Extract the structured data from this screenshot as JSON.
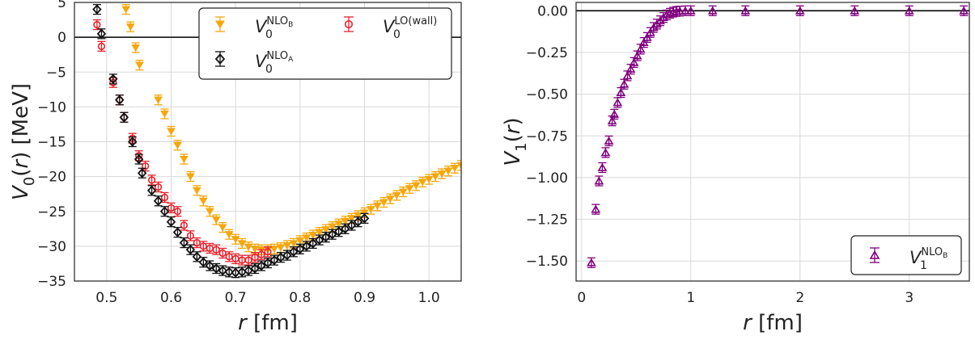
{
  "chart_data": [
    {
      "type": "scatter",
      "xlabel": "r [fm]",
      "ylabel": "V_0(r) [MeV]",
      "xlim": [
        0.45,
        1.05
      ],
      "ylim": [
        -35,
        5
      ],
      "xticks": [
        0.5,
        0.6,
        0.7,
        0.8,
        0.9,
        1.0
      ],
      "xtick_labels": [
        "0.5",
        "0.6",
        "0.7",
        "0.8",
        "0.9",
        "1.0"
      ],
      "yticks": [
        -35,
        -30,
        -25,
        -20,
        -15,
        -10,
        -5,
        0,
        5
      ],
      "ytick_labels": [
        "−35",
        "−30",
        "−25",
        "−20",
        "−15",
        "−10",
        "−5",
        "0",
        "5"
      ],
      "grid": true,
      "zero_line": true,
      "legend_position": "top-right",
      "series": [
        {
          "name": "V_0^{NLO_B}",
          "legend_label": {
            "base": "V",
            "sub": "0",
            "sup": "NLO",
            "supsub": "B"
          },
          "color": "#f5a70d",
          "marker": "triangle-down",
          "points": [
            [
              0.53,
              4.0
            ],
            [
              0.537,
              1.5
            ],
            [
              0.545,
              -1.5
            ],
            [
              0.551,
              -4.0
            ],
            [
              0.58,
              -9.0
            ],
            [
              0.59,
              -11.0
            ],
            [
              0.6,
              -13.5
            ],
            [
              0.61,
              -15.5
            ],
            [
              0.62,
              -17.5
            ],
            [
              0.63,
              -20.0
            ],
            [
              0.64,
              -22.0
            ],
            [
              0.65,
              -23.5
            ],
            [
              0.66,
              -25.0
            ],
            [
              0.67,
              -26.2
            ],
            [
              0.68,
              -27.3
            ],
            [
              0.69,
              -28.3
            ],
            [
              0.7,
              -29.0
            ],
            [
              0.71,
              -29.6
            ],
            [
              0.72,
              -30.1
            ],
            [
              0.73,
              -30.4
            ],
            [
              0.74,
              -30.5
            ],
            [
              0.75,
              -30.5
            ],
            [
              0.76,
              -30.4
            ],
            [
              0.77,
              -30.2
            ],
            [
              0.78,
              -29.9
            ],
            [
              0.79,
              -29.6
            ],
            [
              0.8,
              -29.2
            ],
            [
              0.81,
              -28.8
            ],
            [
              0.82,
              -28.4
            ],
            [
              0.83,
              -28.0
            ],
            [
              0.84,
              -27.6
            ],
            [
              0.85,
              -27.2
            ],
            [
              0.86,
              -26.8
            ],
            [
              0.87,
              -26.4
            ],
            [
              0.88,
              -26.0
            ],
            [
              0.89,
              -25.6
            ],
            [
              0.9,
              -25.2
            ],
            [
              0.91,
              -24.7
            ],
            [
              0.92,
              -24.2
            ],
            [
              0.93,
              -23.7
            ],
            [
              0.94,
              -23.2
            ],
            [
              0.95,
              -22.7
            ],
            [
              0.96,
              -22.2
            ],
            [
              0.97,
              -21.7
            ],
            [
              0.98,
              -21.3
            ],
            [
              0.99,
              -20.8
            ],
            [
              1.0,
              -20.4
            ],
            [
              1.01,
              -20.0
            ],
            [
              1.02,
              -19.6
            ],
            [
              1.03,
              -19.2
            ],
            [
              1.04,
              -18.8
            ],
            [
              1.05,
              -18.4
            ]
          ]
        },
        {
          "name": "V_0^{LO(wall)}",
          "legend_label": {
            "base": "V",
            "sub": "0",
            "sup": "LO(wall)",
            "supsub": ""
          },
          "color": "#e8202a",
          "marker": "circle",
          "points": [
            [
              0.485,
              1.8
            ],
            [
              0.492,
              -1.3
            ],
            [
              0.51,
              -6.5
            ],
            [
              0.52,
              -9.0
            ],
            [
              0.527,
              -11.5
            ],
            [
              0.54,
              -14.5
            ],
            [
              0.55,
              -17.0
            ],
            [
              0.56,
              -18.5
            ],
            [
              0.57,
              -20.5
            ],
            [
              0.58,
              -21.5
            ],
            [
              0.59,
              -23.0
            ],
            [
              0.6,
              -24.5
            ],
            [
              0.61,
              -25.0
            ],
            [
              0.62,
              -27.0
            ],
            [
              0.63,
              -28.5
            ],
            [
              0.64,
              -29.5
            ],
            [
              0.65,
              -30.0
            ],
            [
              0.66,
              -30.3
            ],
            [
              0.67,
              -30.5
            ],
            [
              0.68,
              -31.0
            ],
            [
              0.69,
              -31.5
            ],
            [
              0.7,
              -31.8
            ],
            [
              0.71,
              -32.0
            ],
            [
              0.72,
              -32.0
            ],
            [
              0.73,
              -31.6
            ],
            [
              0.74,
              -31.2
            ],
            [
              0.75,
              -30.8
            ]
          ]
        },
        {
          "name": "V_0^{NLO_A}",
          "legend_label": {
            "base": "V",
            "sub": "0",
            "sup": "NLO",
            "supsub": "A"
          },
          "color": "#111111",
          "marker": "diamond",
          "points": [
            [
              0.485,
              4.0
            ],
            [
              0.492,
              0.5
            ],
            [
              0.51,
              -6.0
            ],
            [
              0.52,
              -9.0
            ],
            [
              0.527,
              -11.5
            ],
            [
              0.54,
              -15.0
            ],
            [
              0.55,
              -17.5
            ],
            [
              0.555,
              -19.5
            ],
            [
              0.57,
              -22.0
            ],
            [
              0.58,
              -23.5
            ],
            [
              0.59,
              -25.0
            ],
            [
              0.6,
              -26.5
            ],
            [
              0.61,
              -28.0
            ],
            [
              0.62,
              -29.5
            ],
            [
              0.63,
              -30.5
            ],
            [
              0.64,
              -31.5
            ],
            [
              0.65,
              -32.3
            ],
            [
              0.66,
              -32.8
            ],
            [
              0.67,
              -33.2
            ],
            [
              0.68,
              -33.5
            ],
            [
              0.69,
              -33.7
            ],
            [
              0.7,
              -33.8
            ],
            [
              0.71,
              -33.7
            ],
            [
              0.72,
              -33.5
            ],
            [
              0.73,
              -33.2
            ],
            [
              0.74,
              -32.8
            ],
            [
              0.75,
              -32.4
            ],
            [
              0.76,
              -32.0
            ],
            [
              0.77,
              -31.6
            ],
            [
              0.78,
              -31.3
            ],
            [
              0.79,
              -30.8
            ],
            [
              0.8,
              -30.4
            ],
            [
              0.81,
              -30.0
            ],
            [
              0.82,
              -29.6
            ],
            [
              0.83,
              -29.1
            ],
            [
              0.84,
              -28.7
            ],
            [
              0.85,
              -28.3
            ],
            [
              0.86,
              -27.9
            ],
            [
              0.87,
              -27.5
            ],
            [
              0.88,
              -27.0
            ],
            [
              0.89,
              -26.5
            ],
            [
              0.9,
              -26.0
            ]
          ]
        }
      ]
    },
    {
      "type": "scatter",
      "xlabel": "r [fm]",
      "ylabel": "V_1(r)",
      "xlim": [
        -0.05,
        3.55
      ],
      "ylim": [
        -1.62,
        0.05
      ],
      "xticks": [
        0,
        1,
        2,
        3
      ],
      "xtick_labels": [
        "0",
        "1",
        "2",
        "3"
      ],
      "yticks": [
        -1.5,
        -1.25,
        -1.0,
        -0.75,
        -0.5,
        -0.25,
        0.0
      ],
      "ytick_labels": [
        "−1.50",
        "−1.25",
        "−1.00",
        "−0.75",
        "−0.50",
        "−0.25",
        "0.00"
      ],
      "grid": true,
      "zero_line": true,
      "legend_position": "bottom-right",
      "series": [
        {
          "name": "V_1^{NLO_B}",
          "legend_label": {
            "base": "V",
            "sub": "1",
            "sup": "NLO",
            "supsub": "B"
          },
          "color": "#800080",
          "marker": "triangle-up",
          "points": [
            [
              0.09,
              -1.51
            ],
            [
              0.13,
              -1.19
            ],
            [
              0.16,
              -1.02
            ],
            [
              0.19,
              -0.94
            ],
            [
              0.22,
              -0.85
            ],
            [
              0.25,
              -0.78
            ],
            [
              0.28,
              -0.66
            ],
            [
              0.3,
              -0.62
            ],
            [
              0.33,
              -0.55
            ],
            [
              0.36,
              -0.49
            ],
            [
              0.39,
              -0.44
            ],
            [
              0.42,
              -0.39
            ],
            [
              0.45,
              -0.35
            ],
            [
              0.48,
              -0.31
            ],
            [
              0.51,
              -0.27
            ],
            [
              0.54,
              -0.23
            ],
            [
              0.57,
              -0.19
            ],
            [
              0.6,
              -0.16
            ],
            [
              0.63,
              -0.13
            ],
            [
              0.66,
              -0.1
            ],
            [
              0.69,
              -0.08
            ],
            [
              0.72,
              -0.06
            ],
            [
              0.75,
              -0.04
            ],
            [
              0.78,
              -0.025
            ],
            [
              0.81,
              -0.015
            ],
            [
              0.84,
              -0.008
            ],
            [
              0.87,
              -0.004
            ],
            [
              0.9,
              -0.002
            ],
            [
              0.95,
              0.0
            ],
            [
              1.0,
              0.0
            ],
            [
              1.2,
              0.0
            ],
            [
              1.5,
              0.0
            ],
            [
              2.0,
              0.0
            ],
            [
              2.5,
              0.0
            ],
            [
              3.0,
              0.0
            ],
            [
              3.5,
              0.0
            ]
          ]
        }
      ]
    }
  ]
}
